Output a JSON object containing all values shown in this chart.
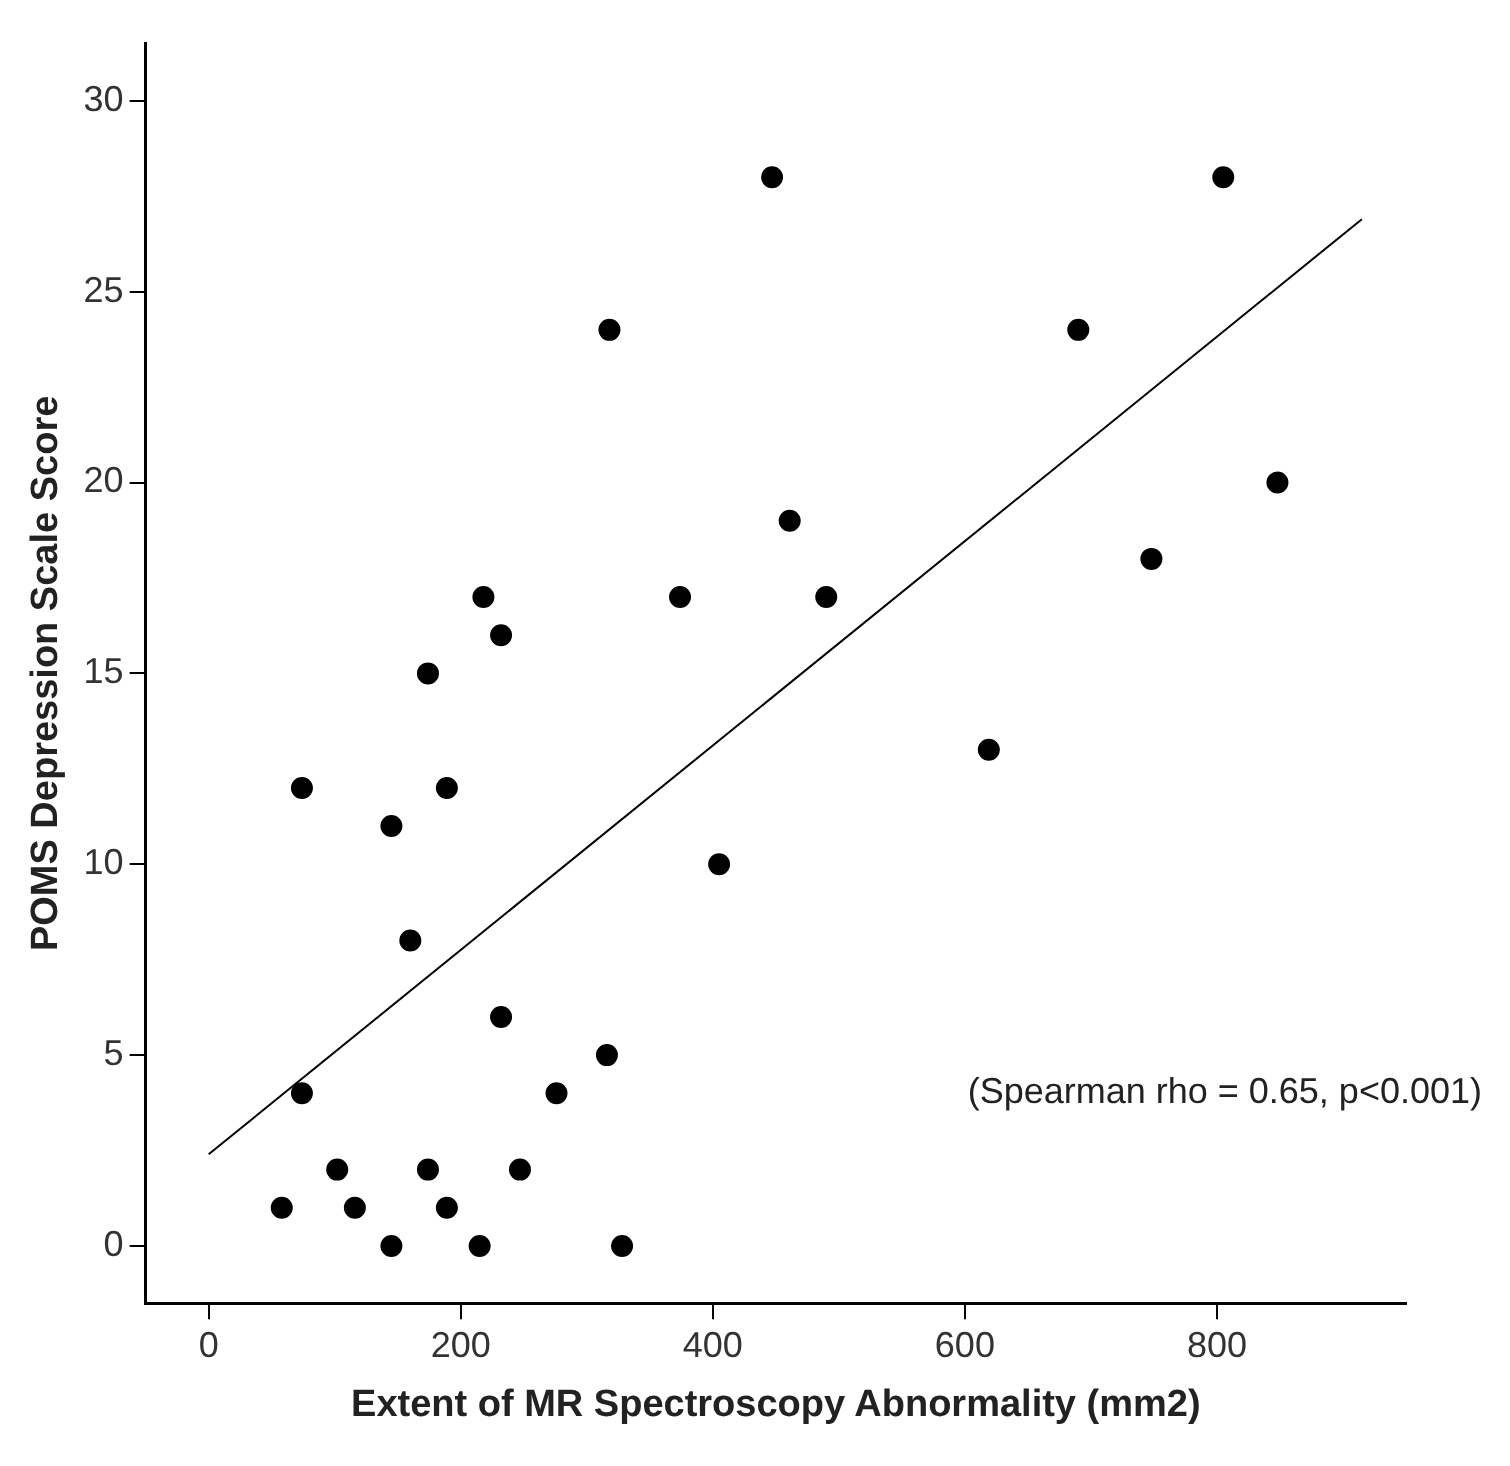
{
  "chart_data": {
    "type": "scatter",
    "xlabel": "Extent of MR Spectroscopy Abnormality (mm2)",
    "ylabel": "POMS Depression Scale Score",
    "xlim": [
      -50,
      950
    ],
    "xticks": [
      0,
      200,
      400,
      600,
      800
    ],
    "ylim": [
      -1.5,
      31.5
    ],
    "yticks": [
      0,
      5,
      10,
      15,
      20,
      25,
      30
    ],
    "grid": false,
    "legend": false,
    "annotations": [
      "(Spearman rho = 0.65, p<0.001)"
    ],
    "series": [
      {
        "color": "#000000",
        "marker": "circle",
        "x": [
          447,
          805,
          690,
          461,
          490,
          748,
          848,
          619,
          232,
          174,
          74,
          189,
          145,
          405,
          160,
          232,
          316,
          74,
          276,
          102,
          174,
          247,
          58,
          116,
          189,
          145,
          215,
          328,
          318,
          218,
          374
        ],
        "values": [
          28,
          28,
          24,
          19,
          17,
          18,
          20,
          13,
          16,
          15,
          12,
          12,
          11,
          10,
          8,
          6,
          5,
          4,
          4,
          2,
          2,
          2,
          1,
          1,
          1,
          0,
          0,
          0,
          24,
          17,
          17
        ]
      },
      {
        "type": "line",
        "color": "#000000",
        "marker": "none",
        "x": [
          0,
          915
        ],
        "values": [
          2.4,
          26.9
        ]
      }
    ]
  }
}
